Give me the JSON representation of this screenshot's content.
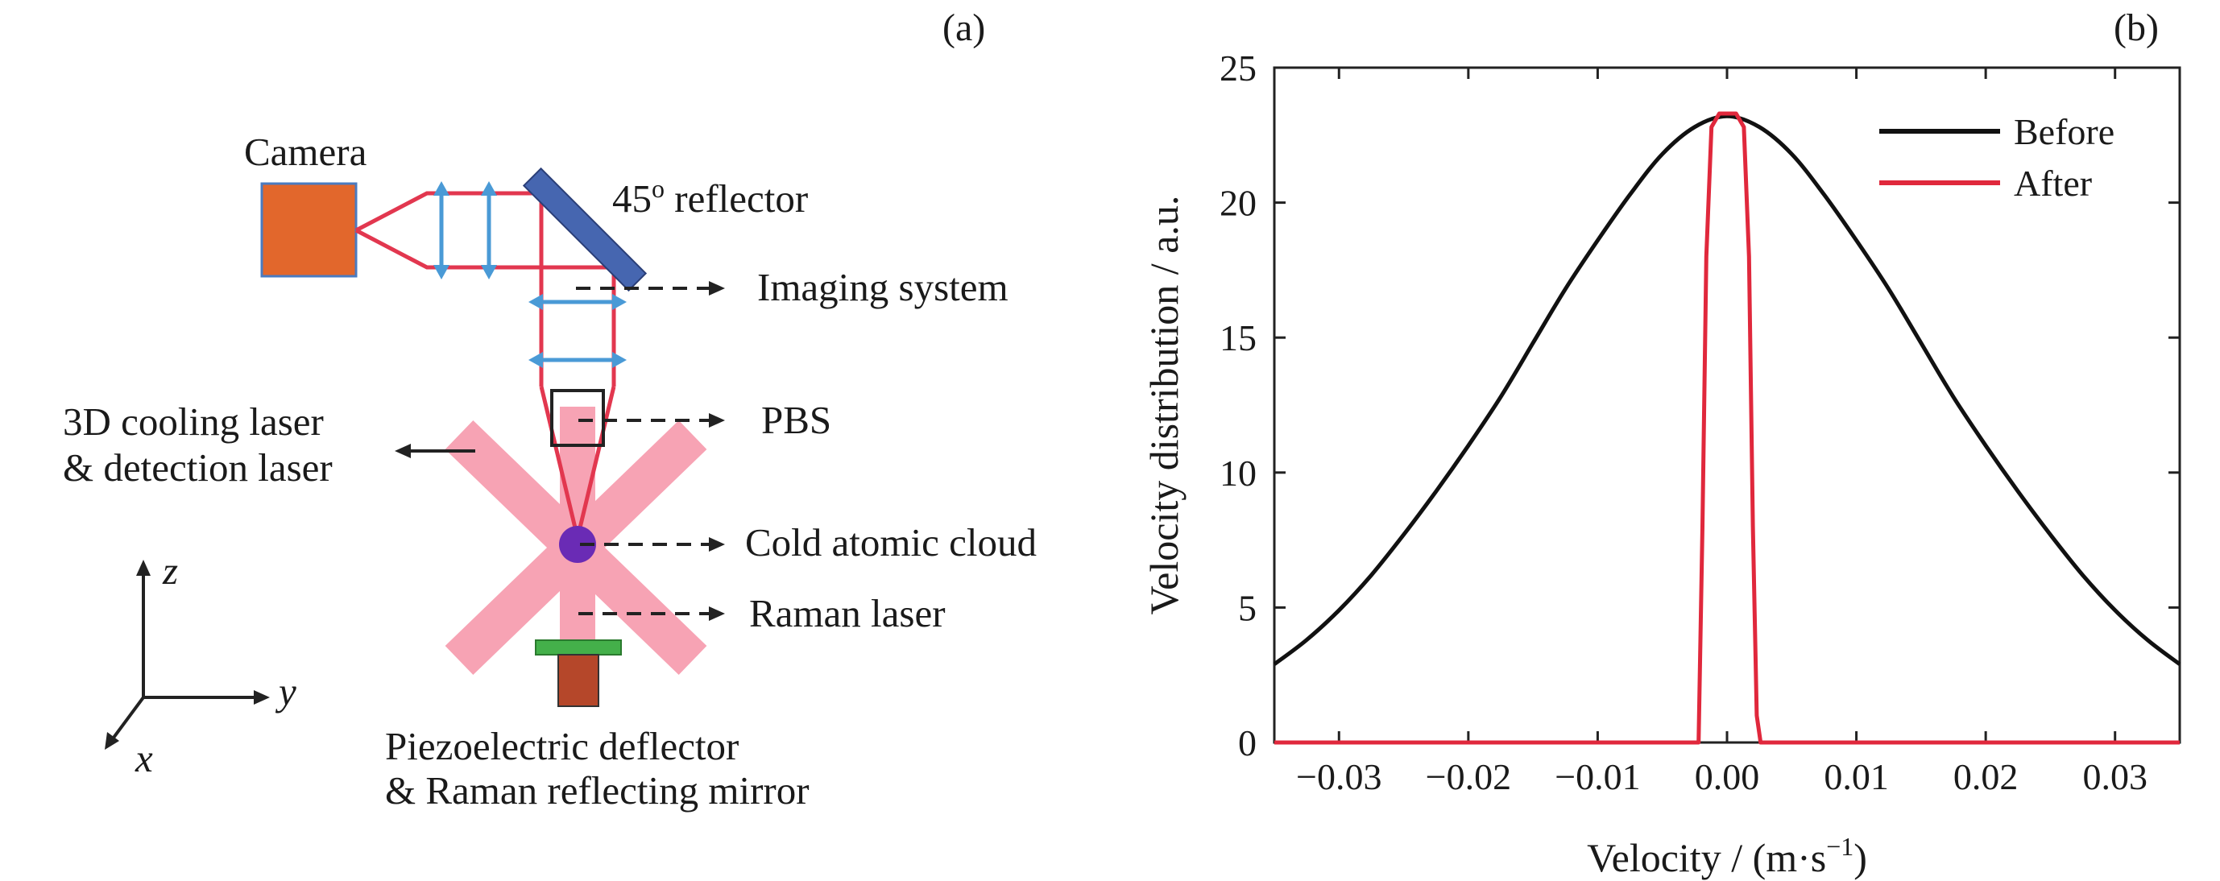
{
  "panel_a": {
    "tag": "(a)",
    "labels": {
      "camera": "Camera",
      "reflector_deg": "45",
      "reflector_sup": "o",
      "reflector_rest": " reflector",
      "imaging": "Imaging system",
      "pbs": "PBS",
      "cooling_1": "3D cooling laser",
      "cooling_2": "& detection laser",
      "cold_cloud": "Cold atomic cloud",
      "raman": "Raman laser",
      "piezo_1": "Piezoelectric deflector",
      "piezo_2": "& Raman reflecting mirror"
    },
    "axes": {
      "z": "z",
      "y": "y",
      "x": "x"
    },
    "colors": {
      "camera": "#e2672c",
      "reflector": "#4666b0",
      "beam": "#e2374f",
      "lens": "#4a9ad6",
      "laser_x": "#f7a3b4",
      "cloud": "#6a2bb5",
      "mirror": "#44b04a",
      "piezo": "#b5472a"
    }
  },
  "panel_b": {
    "tag": "(b)"
  },
  "chart_data": {
    "type": "line",
    "title": "",
    "xlabel": "Velocity / (m·s",
    "xlabel_sup": "−1",
    "xlabel_end": ")",
    "ylabel": "Velocity distribution / a.u.",
    "xlim": [
      -0.035,
      0.035
    ],
    "ylim": [
      0,
      25
    ],
    "x_ticks": [
      -0.03,
      -0.02,
      -0.01,
      0.0,
      0.01,
      0.02,
      0.03
    ],
    "x_tick_labels": [
      "−0.03",
      "−0.02",
      "−0.01",
      "0.00",
      "0.01",
      "0.02",
      "0.03"
    ],
    "y_ticks": [
      0,
      5,
      10,
      15,
      20,
      25
    ],
    "y_tick_labels": [
      "0",
      "5",
      "10",
      "15",
      "20",
      "25"
    ],
    "grid": false,
    "legend_position": "top-right",
    "series": [
      {
        "name": "Before",
        "color": "#111111",
        "x": [
          -0.035,
          -0.0325,
          -0.03,
          -0.0275,
          -0.025,
          -0.0225,
          -0.02,
          -0.0175,
          -0.015,
          -0.0125,
          -0.01,
          -0.0075,
          -0.005,
          -0.0025,
          0.0,
          0.0025,
          0.005,
          0.0075,
          0.01,
          0.0125,
          0.015,
          0.0175,
          0.02,
          0.0225,
          0.025,
          0.0275,
          0.03,
          0.0325,
          0.035
        ],
        "y": [
          2.9,
          3.8,
          4.9,
          6.2,
          7.7,
          9.3,
          11.0,
          12.8,
          14.8,
          16.8,
          18.6,
          20.3,
          21.8,
          22.8,
          23.2,
          22.8,
          21.8,
          20.3,
          18.6,
          16.8,
          14.8,
          12.8,
          11.0,
          9.3,
          7.7,
          6.2,
          4.9,
          3.8,
          2.9
        ]
      },
      {
        "name": "After",
        "color": "#e0283c",
        "x": [
          -0.035,
          -0.0022,
          -0.0019,
          -0.0016,
          -0.0012,
          -0.0006,
          0.0,
          0.0007,
          0.0013,
          0.0017,
          0.002,
          0.0023,
          0.0026,
          0.035
        ],
        "y": [
          0,
          0,
          8.0,
          18.0,
          22.8,
          23.3,
          23.3,
          23.3,
          22.8,
          18.0,
          8.0,
          1.0,
          0,
          0
        ]
      }
    ]
  }
}
